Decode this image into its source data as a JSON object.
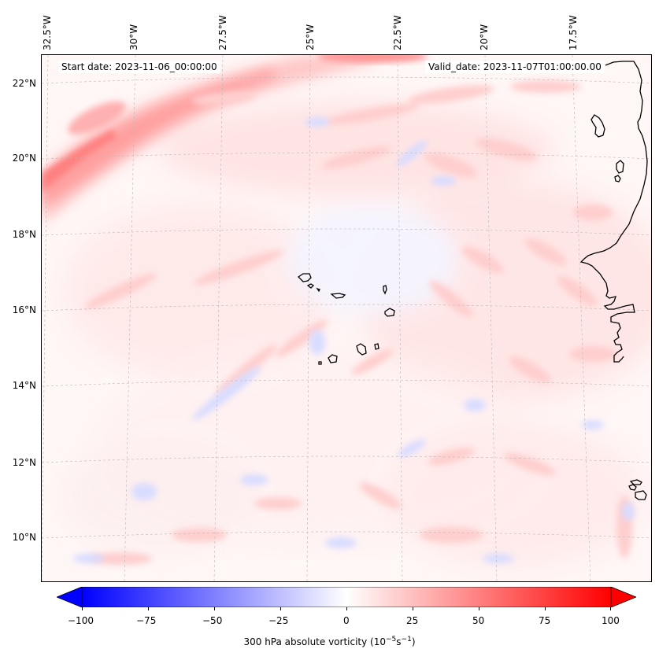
{
  "header": {
    "start_date": "Start date: 2023-11-06_00:00:00",
    "valid_date": "Valid_date: 2023-11-07T01:00:00.00"
  },
  "axes": {
    "lon_labels": [
      "32.5°W",
      "30°W",
      "27.5°W",
      "25°W",
      "22.5°W",
      "20°W",
      "17.5°W"
    ],
    "lat_labels": [
      "22°N",
      "20°N",
      "18°N",
      "16°N",
      "14°N",
      "12°N",
      "10°N"
    ]
  },
  "colorbar": {
    "ticks": [
      "−100",
      "−75",
      "−50",
      "−25",
      "0",
      "25",
      "50",
      "75",
      "100"
    ],
    "label_main": "300 hPa absolute vorticity (10",
    "label_sup1": "−5",
    "label_mid": "s",
    "label_sup2": "−1",
    "label_end": ")",
    "min": -100,
    "max": 100,
    "extend": "both",
    "cmap": "bwr"
  },
  "colors": {
    "coastline": "#000000",
    "grid": "#b0b0b0",
    "positive": "#ff0000",
    "negative": "#0000ff",
    "neutral": "#ffffff"
  }
}
